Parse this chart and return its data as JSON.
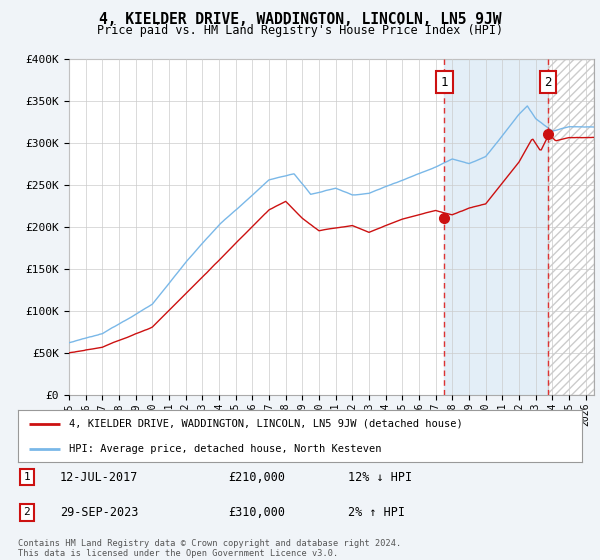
{
  "title": "4, KIELDER DRIVE, WADDINGTON, LINCOLN, LN5 9JW",
  "subtitle": "Price paid vs. HM Land Registry's House Price Index (HPI)",
  "ylabel_ticks": [
    "£0",
    "£50K",
    "£100K",
    "£150K",
    "£200K",
    "£250K",
    "£300K",
    "£350K",
    "£400K"
  ],
  "ytick_values": [
    0,
    50000,
    100000,
    150000,
    200000,
    250000,
    300000,
    350000,
    400000
  ],
  "ylim": [
    0,
    400000
  ],
  "xlim_start": 1995.0,
  "xlim_end": 2026.5,
  "hpi_color": "#7ab8e8",
  "price_color": "#cc1111",
  "background_color": "#f0f4f8",
  "plot_bg_color": "#ffffff",
  "grid_color": "#cccccc",
  "transaction1_date": "12-JUL-2017",
  "transaction1_price": 210000,
  "transaction1_hpi_pct": "12% ↓ HPI",
  "transaction1_year": 2017.53,
  "transaction2_date": "29-SEP-2023",
  "transaction2_price": 310000,
  "transaction2_hpi_pct": "2% ↑ HPI",
  "transaction2_year": 2023.75,
  "legend_label_price": "4, KIELDER DRIVE, WADDINGTON, LINCOLN, LN5 9JW (detached house)",
  "legend_label_hpi": "HPI: Average price, detached house, North Kesteven",
  "footer": "Contains HM Land Registry data © Crown copyright and database right 2024.\nThis data is licensed under the Open Government Licence v3.0.",
  "xtick_years": [
    1995,
    1996,
    1997,
    1998,
    1999,
    2000,
    2001,
    2002,
    2003,
    2004,
    2005,
    2006,
    2007,
    2008,
    2009,
    2010,
    2011,
    2012,
    2013,
    2014,
    2015,
    2016,
    2017,
    2018,
    2019,
    2020,
    2021,
    2022,
    2023,
    2024,
    2025,
    2026
  ],
  "shade_color": "#d8e8f5",
  "shade_alpha": 0.7,
  "hatch_color": "#cccccc"
}
